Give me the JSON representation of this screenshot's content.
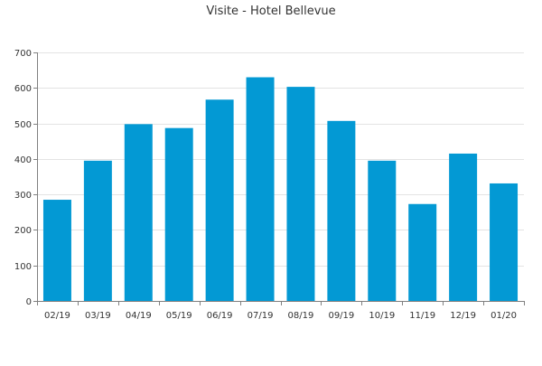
{
  "chart_data": {
    "type": "bar",
    "title": "Visite - Hotel Bellevue",
    "xlabel": "",
    "ylabel": "",
    "categories": [
      "02/19",
      "03/19",
      "04/19",
      "05/19",
      "06/19",
      "07/19",
      "08/19",
      "09/19",
      "10/19",
      "11/19",
      "12/19",
      "01/20"
    ],
    "values": [
      285,
      395,
      498,
      487,
      567,
      630,
      603,
      507,
      395,
      273,
      415,
      331
    ],
    "ylim": [
      0,
      700
    ],
    "yticks": [
      0,
      100,
      200,
      300,
      400,
      500,
      600,
      700
    ],
    "grid": true,
    "legend": "none",
    "bar_color": "#0399d4"
  }
}
